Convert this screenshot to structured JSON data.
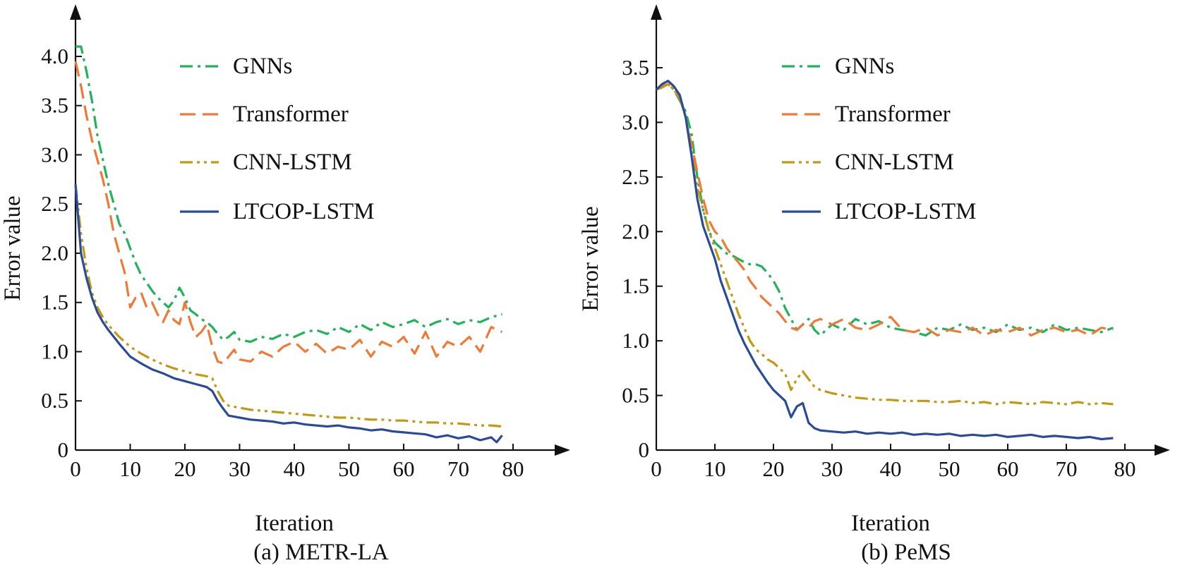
{
  "figure": {
    "colors": {
      "gnn": "#1fb45a",
      "transformer": "#f07a35",
      "cnn": "#c29a12",
      "ltcop": "#2a4a9a",
      "axis": "#111111"
    }
  },
  "chart_data": [
    {
      "type": "line",
      "caption": "(a) METR-LA",
      "xlabel": "Iteration",
      "ylabel": "Error value",
      "xlim": [
        0,
        80
      ],
      "ylim": [
        0,
        4.1
      ],
      "xticks": [
        "0",
        "10",
        "20",
        "30",
        "40",
        "50",
        "60",
        "70",
        "80"
      ],
      "yticks": [
        "0",
        "0.5",
        "1.0",
        "1.5",
        "2.0",
        "2.5",
        "3.0",
        "3.5",
        "4.0"
      ],
      "legend_position": "top-right",
      "series": [
        {
          "name": "GNNs",
          "style": "dashdot",
          "color": "#1fb45a",
          "x": [
            0,
            1,
            2,
            3,
            4,
            5,
            6,
            7,
            8,
            9,
            10,
            11,
            12,
            13,
            14,
            15,
            16,
            17,
            18,
            19,
            20,
            21,
            22,
            23,
            24,
            25,
            26,
            27,
            28,
            29,
            30,
            32,
            34,
            36,
            38,
            40,
            42,
            44,
            46,
            48,
            50,
            52,
            54,
            56,
            58,
            60,
            62,
            64,
            66,
            68,
            70,
            72,
            74,
            76,
            78
          ],
          "y": [
            4.1,
            4.1,
            3.85,
            3.55,
            3.2,
            2.95,
            2.7,
            2.5,
            2.3,
            2.2,
            2.05,
            1.9,
            1.78,
            1.7,
            1.62,
            1.55,
            1.5,
            1.45,
            1.52,
            1.65,
            1.55,
            1.42,
            1.38,
            1.33,
            1.3,
            1.25,
            1.18,
            1.12,
            1.15,
            1.2,
            1.12,
            1.1,
            1.15,
            1.13,
            1.18,
            1.15,
            1.2,
            1.22,
            1.18,
            1.25,
            1.2,
            1.28,
            1.22,
            1.3,
            1.25,
            1.28,
            1.32,
            1.25,
            1.3,
            1.33,
            1.28,
            1.32,
            1.3,
            1.35,
            1.38
          ]
        },
        {
          "name": "Transformer",
          "style": "dashed",
          "color": "#f07a35",
          "x": [
            0,
            1,
            2,
            3,
            4,
            5,
            6,
            7,
            8,
            9,
            10,
            11,
            12,
            13,
            14,
            15,
            16,
            17,
            18,
            19,
            20,
            21,
            22,
            23,
            24,
            25,
            26,
            27,
            28,
            29,
            30,
            32,
            34,
            36,
            38,
            40,
            42,
            44,
            46,
            48,
            50,
            52,
            54,
            56,
            58,
            60,
            62,
            64,
            66,
            68,
            70,
            72,
            74,
            76,
            78
          ],
          "y": [
            3.95,
            3.7,
            3.4,
            3.15,
            2.95,
            2.75,
            2.5,
            2.2,
            2.0,
            1.8,
            1.45,
            1.55,
            1.6,
            1.45,
            1.5,
            1.38,
            1.3,
            1.42,
            1.32,
            1.28,
            1.5,
            1.3,
            1.15,
            1.2,
            1.28,
            1.05,
            0.9,
            0.88,
            0.95,
            1.02,
            0.92,
            0.9,
            1.0,
            0.95,
            1.05,
            1.1,
            1.0,
            1.08,
            0.98,
            1.05,
            1.02,
            1.12,
            0.95,
            1.1,
            1.05,
            1.15,
            0.98,
            1.2,
            0.95,
            1.1,
            1.05,
            1.15,
            1.0,
            1.25,
            1.2
          ]
        },
        {
          "name": "CNN-LSTM",
          "style": "dashdotdot",
          "color": "#c29a12",
          "x": [
            0,
            1,
            2,
            3,
            4,
            5,
            6,
            8,
            10,
            12,
            14,
            16,
            18,
            20,
            22,
            24,
            25,
            26,
            27,
            28,
            30,
            32,
            34,
            36,
            38,
            40,
            42,
            44,
            46,
            48,
            50,
            52,
            54,
            56,
            58,
            60,
            62,
            64,
            66,
            68,
            70,
            72,
            74,
            76,
            78
          ],
          "y": [
            2.7,
            2.2,
            1.85,
            1.6,
            1.45,
            1.35,
            1.27,
            1.15,
            1.05,
            0.98,
            0.92,
            0.87,
            0.83,
            0.8,
            0.77,
            0.75,
            0.73,
            0.6,
            0.5,
            0.45,
            0.43,
            0.41,
            0.4,
            0.39,
            0.38,
            0.37,
            0.36,
            0.35,
            0.34,
            0.33,
            0.33,
            0.32,
            0.31,
            0.31,
            0.3,
            0.3,
            0.29,
            0.28,
            0.28,
            0.27,
            0.27,
            0.26,
            0.25,
            0.25,
            0.24
          ]
        },
        {
          "name": "LTCOP-LSTM",
          "style": "solid",
          "color": "#2a4a9a",
          "x": [
            0,
            1,
            2,
            3,
            4,
            5,
            6,
            8,
            10,
            12,
            14,
            16,
            18,
            20,
            22,
            24,
            25,
            26,
            27,
            28,
            30,
            32,
            34,
            36,
            38,
            40,
            42,
            44,
            46,
            48,
            50,
            52,
            54,
            56,
            58,
            60,
            62,
            64,
            66,
            68,
            70,
            72,
            74,
            76,
            77,
            78
          ],
          "y": [
            2.7,
            2.0,
            1.75,
            1.55,
            1.4,
            1.3,
            1.22,
            1.08,
            0.95,
            0.88,
            0.82,
            0.78,
            0.73,
            0.7,
            0.67,
            0.64,
            0.6,
            0.5,
            0.42,
            0.35,
            0.33,
            0.31,
            0.3,
            0.29,
            0.27,
            0.28,
            0.26,
            0.25,
            0.24,
            0.25,
            0.23,
            0.22,
            0.2,
            0.21,
            0.19,
            0.18,
            0.17,
            0.16,
            0.13,
            0.15,
            0.12,
            0.14,
            0.1,
            0.13,
            0.08,
            0.15
          ]
        }
      ]
    },
    {
      "type": "line",
      "caption": "(b) PeMS",
      "xlabel": "Iteration",
      "ylabel": "Error value",
      "xlim": [
        0,
        80
      ],
      "ylim": [
        0,
        3.5
      ],
      "xticks": [
        "0",
        "10",
        "20",
        "30",
        "40",
        "50",
        "60",
        "70",
        "80"
      ],
      "yticks": [
        "0",
        "0.5",
        "1.0",
        "1.5",
        "2.0",
        "2.5",
        "3.0",
        "3.5"
      ],
      "legend_position": "top-right",
      "series": [
        {
          "name": "GNNs",
          "style": "dashdot",
          "color": "#1fb45a",
          "x": [
            0,
            1,
            2,
            3,
            4,
            5,
            6,
            7,
            8,
            9,
            10,
            11,
            12,
            13,
            14,
            15,
            16,
            17,
            18,
            19,
            20,
            21,
            22,
            23,
            24,
            25,
            26,
            27,
            28,
            30,
            32,
            34,
            36,
            38,
            40,
            42,
            44,
            46,
            48,
            50,
            52,
            54,
            56,
            58,
            60,
            62,
            64,
            66,
            68,
            70,
            72,
            74,
            76,
            78
          ],
          "y": [
            3.3,
            3.32,
            3.35,
            3.3,
            3.2,
            3.1,
            2.9,
            2.5,
            2.2,
            2.0,
            1.9,
            1.85,
            1.8,
            1.78,
            1.75,
            1.72,
            1.7,
            1.7,
            1.68,
            1.62,
            1.55,
            1.45,
            1.3,
            1.2,
            1.1,
            1.15,
            1.2,
            1.1,
            1.05,
            1.15,
            1.1,
            1.2,
            1.15,
            1.18,
            1.12,
            1.1,
            1.08,
            1.05,
            1.12,
            1.1,
            1.15,
            1.1,
            1.12,
            1.08,
            1.15,
            1.1,
            1.12,
            1.08,
            1.15,
            1.1,
            1.12,
            1.1,
            1.08,
            1.12
          ]
        },
        {
          "name": "Transformer",
          "style": "dashed",
          "color": "#f07a35",
          "x": [
            0,
            1,
            2,
            3,
            4,
            5,
            6,
            7,
            8,
            9,
            10,
            11,
            12,
            13,
            14,
            15,
            16,
            17,
            18,
            19,
            20,
            21,
            22,
            23,
            24,
            25,
            26,
            27,
            28,
            30,
            32,
            34,
            36,
            38,
            40,
            42,
            44,
            46,
            48,
            50,
            52,
            54,
            56,
            58,
            60,
            62,
            64,
            66,
            68,
            70,
            72,
            74,
            76,
            78
          ],
          "y": [
            3.3,
            3.33,
            3.35,
            3.3,
            3.22,
            3.05,
            2.8,
            2.55,
            2.3,
            2.1,
            2.0,
            1.95,
            1.85,
            1.78,
            1.72,
            1.65,
            1.55,
            1.48,
            1.4,
            1.35,
            1.3,
            1.25,
            1.18,
            1.12,
            1.1,
            1.15,
            1.12,
            1.18,
            1.2,
            1.15,
            1.2,
            1.12,
            1.1,
            1.15,
            1.22,
            1.1,
            1.08,
            1.12,
            1.05,
            1.1,
            1.08,
            1.12,
            1.05,
            1.1,
            1.08,
            1.12,
            1.05,
            1.1,
            1.12,
            1.08,
            1.1,
            1.05,
            1.12,
            1.1
          ]
        },
        {
          "name": "CNN-LSTM",
          "style": "dashdotdot",
          "color": "#c29a12",
          "x": [
            0,
            1,
            2,
            3,
            4,
            5,
            6,
            7,
            8,
            9,
            10,
            11,
            12,
            13,
            14,
            15,
            16,
            17,
            18,
            19,
            20,
            21,
            22,
            23,
            24,
            25,
            26,
            27,
            28,
            30,
            32,
            34,
            36,
            38,
            40,
            42,
            44,
            46,
            48,
            50,
            52,
            54,
            56,
            58,
            60,
            62,
            64,
            66,
            68,
            70,
            72,
            74,
            76,
            78
          ],
          "y": [
            3.3,
            3.32,
            3.35,
            3.3,
            3.22,
            3.05,
            2.75,
            2.4,
            2.2,
            2.0,
            1.85,
            1.7,
            1.55,
            1.4,
            1.25,
            1.12,
            1.0,
            0.92,
            0.88,
            0.83,
            0.8,
            0.75,
            0.7,
            0.55,
            0.65,
            0.72,
            0.65,
            0.58,
            0.55,
            0.52,
            0.5,
            0.48,
            0.47,
            0.46,
            0.46,
            0.45,
            0.45,
            0.45,
            0.44,
            0.44,
            0.45,
            0.43,
            0.44,
            0.42,
            0.44,
            0.43,
            0.42,
            0.44,
            0.43,
            0.42,
            0.44,
            0.42,
            0.43,
            0.42
          ]
        },
        {
          "name": "LTCOP-LSTM",
          "style": "solid",
          "color": "#2a4a9a",
          "x": [
            0,
            1,
            2,
            3,
            4,
            5,
            6,
            7,
            8,
            9,
            10,
            11,
            12,
            13,
            14,
            15,
            16,
            17,
            18,
            19,
            20,
            21,
            22,
            23,
            24,
            25,
            26,
            27,
            28,
            30,
            32,
            34,
            36,
            38,
            40,
            42,
            44,
            46,
            48,
            50,
            52,
            54,
            56,
            58,
            60,
            62,
            64,
            66,
            68,
            70,
            72,
            74,
            76,
            78
          ],
          "y": [
            3.3,
            3.35,
            3.38,
            3.33,
            3.25,
            3.05,
            2.7,
            2.3,
            2.05,
            1.9,
            1.75,
            1.55,
            1.4,
            1.25,
            1.1,
            0.98,
            0.88,
            0.78,
            0.7,
            0.62,
            0.55,
            0.5,
            0.45,
            0.3,
            0.4,
            0.43,
            0.25,
            0.2,
            0.18,
            0.17,
            0.16,
            0.17,
            0.15,
            0.16,
            0.15,
            0.16,
            0.14,
            0.15,
            0.14,
            0.15,
            0.13,
            0.14,
            0.13,
            0.14,
            0.12,
            0.13,
            0.14,
            0.12,
            0.13,
            0.12,
            0.11,
            0.12,
            0.1,
            0.11
          ]
        }
      ]
    }
  ]
}
